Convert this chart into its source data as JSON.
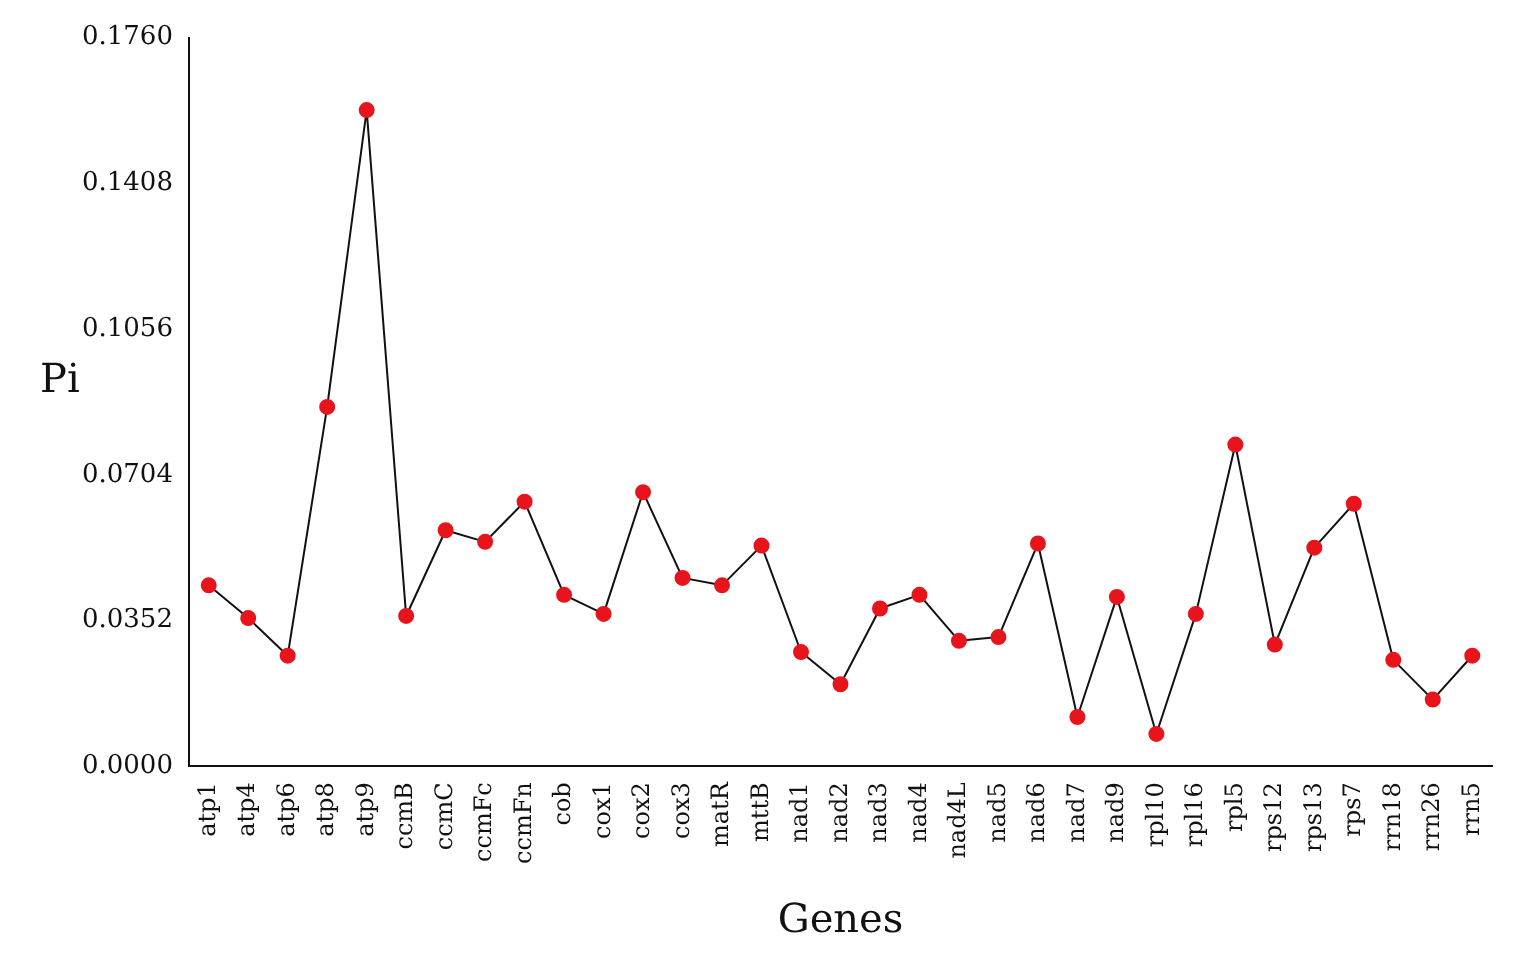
{
  "chart_data": {
    "type": "line",
    "xlabel": "Genes",
    "ylabel": "Pi",
    "categories": [
      "atp1",
      "atp4",
      "atp6",
      "atp8",
      "atp9",
      "ccmB",
      "ccmC",
      "ccmFc",
      "ccmFn",
      "cob",
      "cox1",
      "cox2",
      "cox3",
      "matR",
      "mttB",
      "nad1",
      "nad2",
      "nad3",
      "nad4",
      "nad4L",
      "nad5",
      "nad6",
      "nad7",
      "nad9",
      "rpl10",
      "rpl16",
      "rpl5",
      "rps12",
      "rps13",
      "rps7",
      "rrn18",
      "rrn26",
      "rrn5"
    ],
    "series": [
      {
        "color": "#e8141c",
        "values": [
          0.0437,
          0.0358,
          0.0267,
          0.0868,
          0.1585,
          0.0363,
          0.057,
          0.0542,
          0.0639,
          0.0414,
          0.0368,
          0.0662,
          0.0455,
          0.0437,
          0.0533,
          0.0276,
          0.0198,
          0.0381,
          0.0414,
          0.0303,
          0.0312,
          0.0538,
          0.0119,
          0.0409,
          0.0078,
          0.0368,
          0.0777,
          0.0294,
          0.0528,
          0.0634,
          0.0257,
          0.0161,
          0.0267
        ]
      }
    ],
    "ylim": [
      0,
      0.176
    ],
    "yticks": [
      {
        "value": 0,
        "label": "0.0000"
      },
      {
        "value": 0.0352,
        "label": "0.0352"
      },
      {
        "value": 0.0704,
        "label": "0.0704"
      },
      {
        "value": 0.1056,
        "label": "0.1056"
      },
      {
        "value": 0.1408,
        "label": "0.1408"
      },
      {
        "value": 0.176,
        "label": "0.1760"
      }
    ],
    "grid": false,
    "legend": false,
    "marker": "circle",
    "line_style": "solid"
  }
}
